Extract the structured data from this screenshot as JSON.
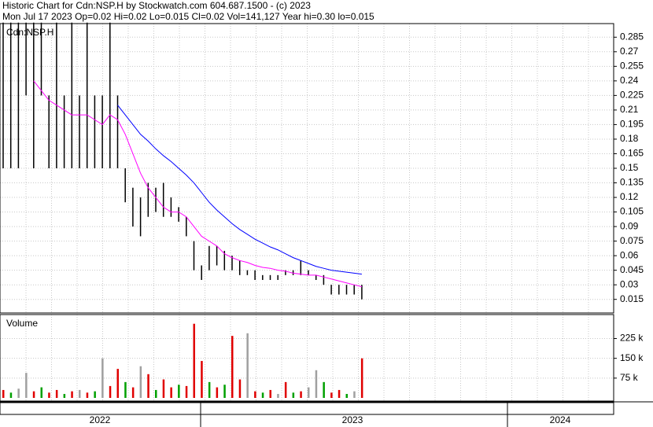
{
  "chart_data": [
    {
      "type": "hilo",
      "title": "Historic Chart for Cdn:NSP.H by Stockwatch.com 604.687.1500 - (c) 2023",
      "subtitle": "Mon Jul 17 2023  Op=0.02  Hi=0.02  Lo=0.015  Cl=0.02  Vol=141,127  Year hi=0.30  lo=0.015",
      "ylim": [
        0.001,
        0.299
      ],
      "yticks": [
        0.015,
        0.03,
        0.045,
        0.06,
        0.075,
        0.09,
        0.105,
        0.12,
        0.135,
        0.15,
        0.165,
        0.18,
        0.195,
        0.21,
        0.225,
        0.24,
        0.255,
        0.27,
        0.285
      ],
      "grid": true,
      "series": [
        {
          "name": "Cdn:NSP.H",
          "color": "#000000",
          "high": [
            0.3,
            0.3,
            0.3,
            0.3,
            0.3,
            0.3,
            0.225,
            0.3,
            0.225,
            0.3,
            0.225,
            0.3,
            0.225,
            0.225,
            0.3,
            0.225,
            0.15,
            0.13,
            0.12,
            0.135,
            0.13,
            0.135,
            0.12,
            0.11,
            0.1,
            0.075,
            0.05,
            0.07,
            0.07,
            0.065,
            0.06,
            0.055,
            0.045,
            0.045,
            0.04,
            0.04,
            0.04,
            0.045,
            0.045,
            0.055,
            0.045,
            0.04,
            0.04,
            0.03,
            0.03,
            0.03,
            0.03,
            0.03
          ],
          "low": [
            0.15,
            0.15,
            0.15,
            0.225,
            0.15,
            0.225,
            0.15,
            0.15,
            0.15,
            0.15,
            0.15,
            0.15,
            0.15,
            0.15,
            0.15,
            0.15,
            0.115,
            0.09,
            0.08,
            0.1,
            0.105,
            0.1,
            0.1,
            0.095,
            0.08,
            0.045,
            0.035,
            0.045,
            0.05,
            0.045,
            0.045,
            0.04,
            0.04,
            0.035,
            0.035,
            0.035,
            0.035,
            0.04,
            0.04,
            0.04,
            0.04,
            0.035,
            0.03,
            0.02,
            0.02,
            0.02,
            0.02,
            0.015
          ]
        },
        {
          "color": "#ff00ff",
          "values": [
            null,
            null,
            null,
            null,
            0.24,
            0.23,
            0.22,
            0.215,
            0.21,
            0.205,
            0.205,
            0.205,
            0.2,
            0.195,
            0.205,
            0.2,
            0.185,
            0.165,
            0.145,
            0.13,
            0.12,
            0.11,
            0.105,
            0.105,
            0.1,
            0.09,
            0.08,
            0.075,
            0.07,
            0.062,
            0.058,
            0.055,
            0.053,
            0.05,
            0.048,
            0.047,
            0.045,
            0.044,
            0.042,
            0.041,
            0.04,
            0.04,
            0.038,
            0.036,
            0.034,
            0.032,
            0.03,
            0.028
          ]
        },
        {
          "color": "#0000ff",
          "values": [
            null,
            null,
            null,
            null,
            null,
            null,
            null,
            null,
            null,
            null,
            null,
            null,
            null,
            null,
            null,
            0.215,
            0.205,
            0.195,
            0.185,
            0.178,
            0.17,
            0.163,
            0.157,
            0.15,
            0.143,
            0.135,
            0.125,
            0.115,
            0.107,
            0.1,
            0.093,
            0.087,
            0.082,
            0.077,
            0.073,
            0.069,
            0.066,
            0.062,
            0.058,
            0.055,
            0.052,
            0.049,
            0.047,
            0.045,
            0.044,
            0.043,
            0.042,
            0.041
          ]
        }
      ]
    },
    {
      "type": "bar",
      "title": "Volume",
      "ylim": [
        0,
        310000
      ],
      "yticks": [
        {
          "value": 75000,
          "label": "75 k"
        },
        {
          "value": 150000,
          "label": "150 k"
        },
        {
          "value": 225000,
          "label": "225 k"
        }
      ],
      "grid": true,
      "values": [
        30000,
        20000,
        35000,
        95000,
        25000,
        40000,
        20000,
        30000,
        15000,
        25000,
        30000,
        20000,
        25000,
        150000,
        45000,
        110000,
        60000,
        40000,
        120000,
        90000,
        30000,
        70000,
        40000,
        50000,
        45000,
        281000,
        140000,
        60000,
        40000,
        50000,
        235000,
        70000,
        245000,
        25000,
        20000,
        30000,
        15000,
        60000,
        20000,
        25000,
        40000,
        105000,
        60000,
        20000,
        30000,
        15000,
        25000,
        150000
      ],
      "colors": [
        "#e00000",
        "#00a000",
        "#a0a0a0",
        "#a0a0a0",
        "#e00000",
        "#00a000",
        "#e00000",
        "#e00000",
        "#00a000",
        "#e00000",
        "#a0a0a0",
        "#e00000",
        "#00a000",
        "#a0a0a0",
        "#e00000",
        "#e00000",
        "#00a000",
        "#e00000",
        "#a0a0a0",
        "#e00000",
        "#00a000",
        "#e00000",
        "#e00000",
        "#00a000",
        "#e00000",
        "#e00000",
        "#e00000",
        "#00a000",
        "#e00000",
        "#00a000",
        "#e00000",
        "#e00000",
        "#a0a0a0",
        "#e00000",
        "#00a000",
        "#e00000",
        "#a0a0a0",
        "#e00000",
        "#00a000",
        "#e00000",
        "#a0a0a0",
        "#a0a0a0",
        "#00a000",
        "#e00000",
        "#e00000",
        "#00a000",
        "#a0a0a0",
        "#e00000"
      ],
      "period_labels": [
        "2022",
        "2023",
        "2024"
      ]
    }
  ]
}
